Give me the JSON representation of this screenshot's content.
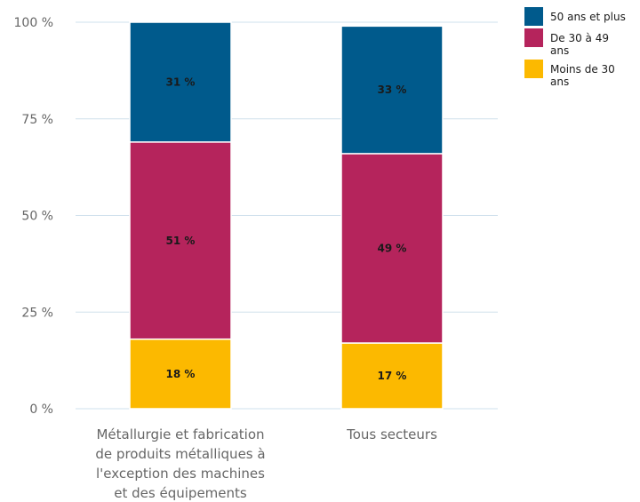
{
  "chart_data": {
    "type": "bar",
    "stacked": true,
    "categories": [
      [
        "Métallurgie et fabrication",
        "de produits métalliques à",
        "l'exception des machines",
        "et des équipements"
      ],
      [
        "Tous secteurs"
      ]
    ],
    "series": [
      {
        "name": "Moins de 30 ans",
        "values": [
          18,
          17
        ],
        "labels": [
          "18 %",
          "17 %"
        ],
        "color": "#FCB900"
      },
      {
        "name": "De 30 à 49 ans",
        "values": [
          51,
          49
        ],
        "labels": [
          "51 %",
          "49 %"
        ],
        "color": "#B5245C"
      },
      {
        "name": "50 ans et plus",
        "values": [
          31,
          33
        ],
        "labels": [
          "31 %",
          "33 %"
        ],
        "color": "#005A8C"
      }
    ],
    "ylim": [
      0,
      100
    ],
    "yticks": [
      0,
      25,
      50,
      75,
      100
    ],
    "ytick_labels": [
      "0 %",
      "25 %",
      "50 %",
      "75 %",
      "100 %"
    ],
    "grid": true,
    "legend_position": "top-right",
    "legend": [
      {
        "lines": [
          "50 ans et plus"
        ],
        "color": "#005A8C"
      },
      {
        "lines": [
          "De 30 à 49",
          "ans"
        ],
        "color": "#B5245C"
      },
      {
        "lines": [
          "Moins de 30",
          "ans"
        ],
        "color": "#FCB900"
      }
    ]
  }
}
